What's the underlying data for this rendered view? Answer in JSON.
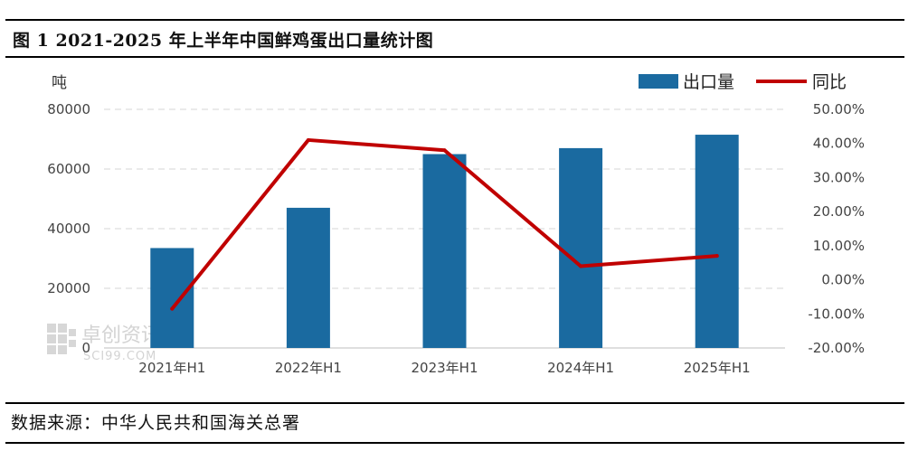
{
  "title": "图 1 2021-2025 年上半年中国鲜鸡蛋出口量统计图",
  "source": "数据来源：中华人民共和国海关总署",
  "watermark": {
    "cn": "卓创资讯",
    "en": "SCI99.COM"
  },
  "colors": {
    "bar": "#1a6aa0",
    "line": "#c00000",
    "grid": "#d4d4d4"
  },
  "chart_data": {
    "type": "bar",
    "categories": [
      "2021年H1",
      "2022年H1",
      "2023年H1",
      "2024年H1",
      "2025年H1"
    ],
    "y_unit": "吨",
    "ylim_left": [
      0,
      80000
    ],
    "ylim_right": [
      -20,
      50
    ],
    "left_ticks": [
      "80000",
      "60000",
      "40000",
      "20000",
      "0"
    ],
    "right_ticks": [
      "50.00%",
      "40.00%",
      "30.00%",
      "20.00%",
      "10.00%",
      "0.00%",
      "-10.00%",
      "-20.00%"
    ],
    "grid": true,
    "legend_position": "top-right",
    "series": [
      {
        "name": "出口量",
        "type": "bar",
        "axis": "left",
        "values": [
          33500,
          47000,
          65000,
          67000,
          71500
        ]
      },
      {
        "name": "同比",
        "type": "line",
        "axis": "right",
        "values": [
          -8.5,
          41,
          38,
          4,
          7
        ]
      }
    ]
  }
}
